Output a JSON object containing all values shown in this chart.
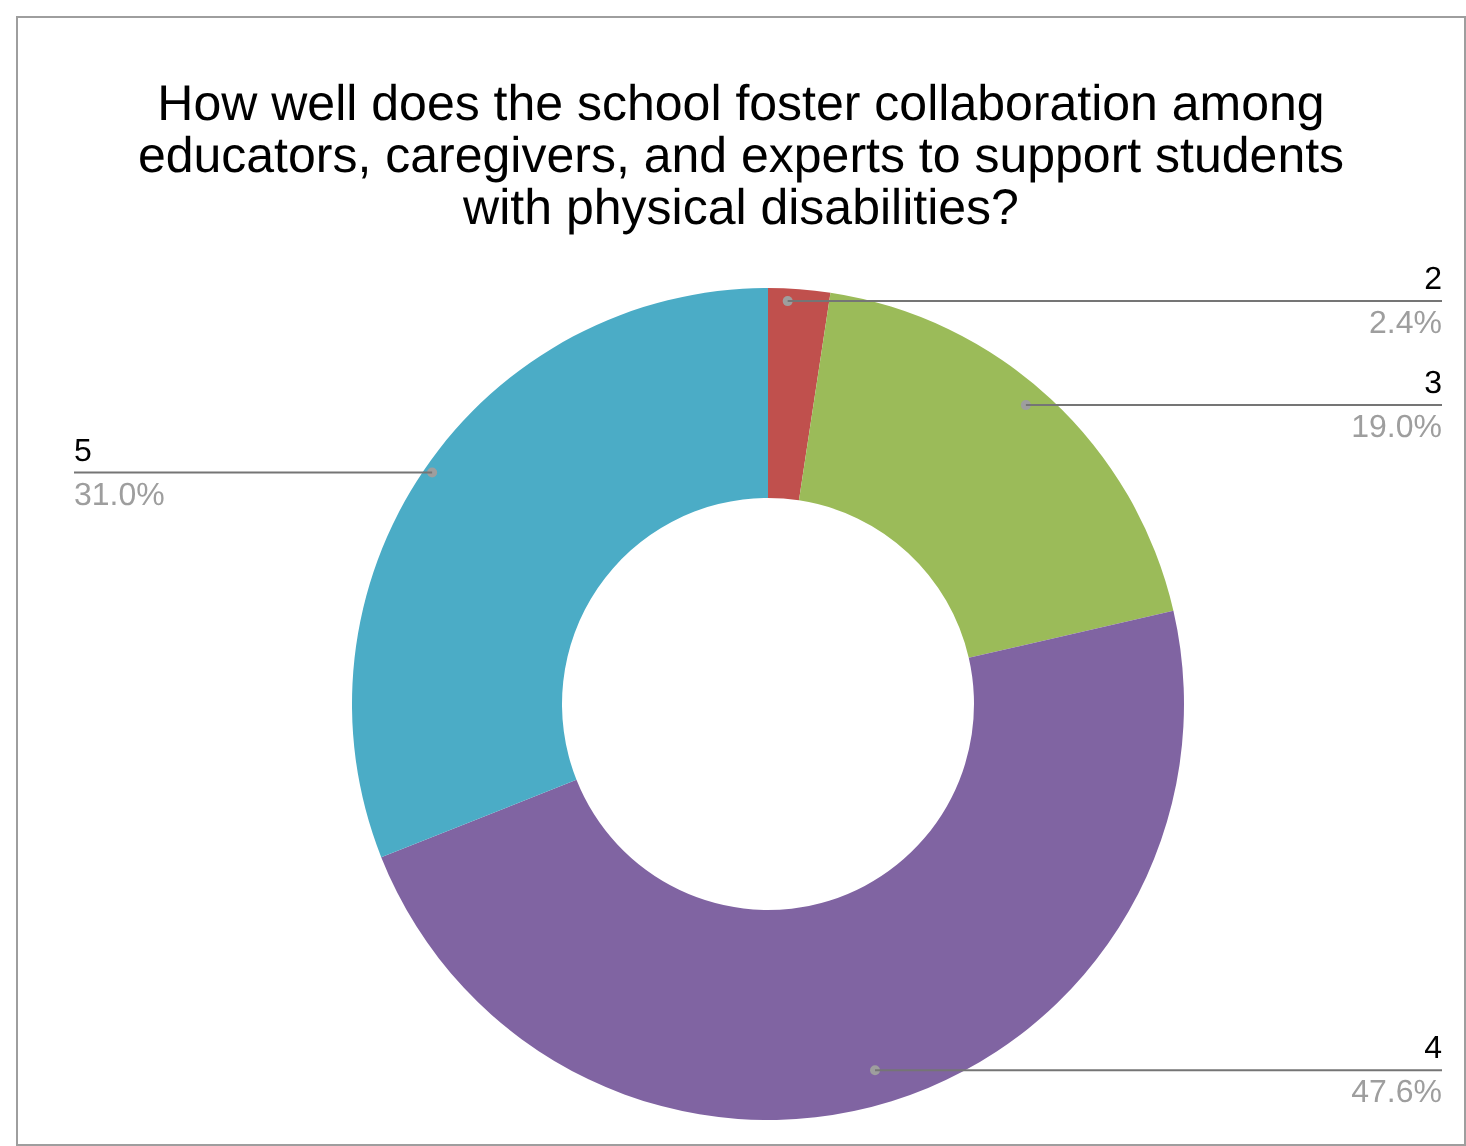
{
  "chart_data": {
    "type": "donut",
    "title": "How well does the school foster collaboration among educators, caregivers, and experts to support students with physical disabilities?",
    "categories": [
      "2",
      "3",
      "4",
      "5"
    ],
    "values": [
      2.4,
      19.0,
      47.6,
      31.0
    ],
    "colors": [
      "#c0504d",
      "#9bbb59",
      "#8064a2",
      "#4bacc6"
    ],
    "value_labels": [
      "2.4%",
      "19.0%",
      "47.6%",
      "31.0%"
    ],
    "legend": false
  }
}
